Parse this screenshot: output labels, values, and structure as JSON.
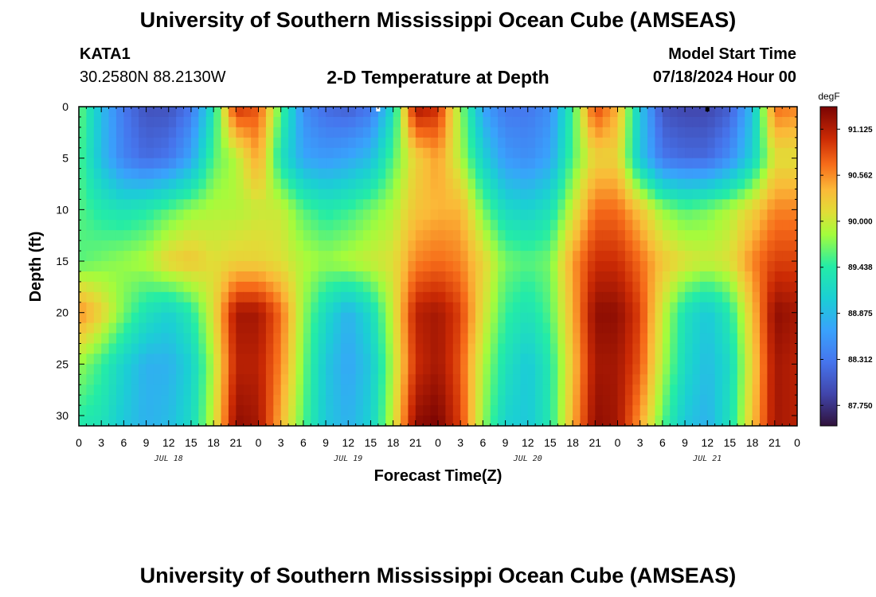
{
  "header": {
    "title": "University of Southern Mississippi Ocean Cube (AMSEAS)",
    "station": "KATA1",
    "coordinates": "30.2580N  88.2130W",
    "subtitle": "2-D Temperature at Depth",
    "model_start_label": "Model Start Time",
    "model_start_value": "07/18/2024 Hour 00"
  },
  "footer": {
    "title": "University of Southern Mississippi Ocean Cube (AMSEAS)"
  },
  "chart_data": {
    "type": "heatmap",
    "title": "2-D Temperature at Depth",
    "xlabel": "Forecast Time(Z)",
    "ylabel": "Depth (ft)",
    "x_range_hours": [
      0,
      96
    ],
    "x_tick_step_hours": 3,
    "x_tick_labels": [
      "0",
      "3",
      "6",
      "9",
      "12",
      "15",
      "18",
      "21",
      "0",
      "3",
      "6",
      "9",
      "12",
      "15",
      "18",
      "21",
      "0",
      "3",
      "6",
      "9",
      "12",
      "15",
      "18",
      "21",
      "0",
      "3",
      "6",
      "9",
      "12",
      "15",
      "18",
      "21",
      "0"
    ],
    "date_labels": [
      {
        "label": "JUL 18",
        "hour": 12
      },
      {
        "label": "JUL 19",
        "hour": 36
      },
      {
        "label": "JUL 20",
        "hour": 60
      },
      {
        "label": "JUL 21",
        "hour": 84
      }
    ],
    "y_range_ft": [
      0,
      31
    ],
    "y_tick_labels": [
      "0",
      "5",
      "10",
      "15",
      "20",
      "25",
      "30"
    ],
    "y_ticks": [
      0,
      5,
      10,
      15,
      20,
      25,
      30
    ],
    "colorbar": {
      "unit": "degF",
      "min": 87.5,
      "max": 91.4,
      "ticks": [
        "91.125",
        "90.562",
        "90.000",
        "89.438",
        "88.875",
        "88.312",
        "87.750"
      ],
      "tick_values": [
        91.125,
        90.562,
        90.0,
        89.438,
        88.875,
        88.312,
        87.75
      ]
    },
    "depth_ft": [
      0,
      5,
      10,
      15,
      20,
      25,
      31
    ],
    "time_hours": [
      0,
      3,
      6,
      9,
      12,
      15,
      18,
      21,
      24,
      27,
      30,
      33,
      36,
      39,
      42,
      45,
      48,
      51,
      54,
      57,
      60,
      63,
      66,
      69,
      72,
      75,
      78,
      81,
      84,
      87,
      90,
      93,
      96
    ],
    "temperature_degF": [
      [
        89.7,
        88.9,
        88.3,
        88.0,
        88.0,
        88.3,
        89.3,
        91.0,
        90.8,
        89.6,
        88.5,
        88.2,
        88.1,
        88.3,
        89.2,
        91.2,
        91.0,
        89.8,
        88.7,
        88.3,
        88.3,
        88.5,
        89.5,
        90.9,
        90.4,
        89.0,
        88.0,
        87.9,
        87.9,
        88.1,
        88.9,
        90.7,
        90.6
      ],
      [
        89.6,
        88.9,
        88.4,
        88.2,
        88.3,
        88.7,
        89.6,
        89.9,
        90.5,
        89.3,
        88.7,
        88.6,
        88.7,
        88.9,
        89.6,
        90.2,
        90.5,
        89.9,
        89.1,
        88.6,
        88.5,
        88.7,
        89.6,
        90.2,
        90.2,
        89.0,
        88.3,
        88.2,
        88.2,
        88.5,
        89.1,
        90.1,
        90.1
      ],
      [
        89.6,
        89.4,
        89.3,
        89.4,
        89.6,
        89.8,
        89.9,
        89.9,
        90.0,
        90.0,
        89.6,
        89.4,
        89.5,
        89.7,
        89.9,
        90.3,
        90.4,
        90.4,
        89.7,
        89.2,
        89.1,
        89.3,
        90.0,
        90.7,
        90.7,
        90.3,
        89.8,
        89.6,
        89.7,
        89.9,
        90.2,
        90.6,
        90.6
      ],
      [
        89.6,
        89.7,
        89.8,
        89.9,
        90.2,
        90.3,
        90.1,
        90.2,
        90.2,
        90.1,
        89.9,
        89.8,
        89.9,
        90.0,
        90.1,
        90.6,
        90.7,
        90.6,
        90.2,
        89.7,
        89.6,
        89.7,
        90.5,
        91.0,
        91.0,
        90.7,
        90.3,
        90.1,
        90.0,
        90.1,
        90.6,
        90.9,
        90.9
      ],
      [
        90.6,
        90.2,
        89.7,
        89.3,
        89.1,
        89.4,
        90.1,
        91.2,
        91.2,
        90.7,
        89.8,
        89.2,
        88.8,
        89.2,
        90.0,
        91.1,
        91.2,
        90.9,
        90.1,
        89.5,
        89.3,
        89.6,
        90.4,
        91.3,
        91.3,
        90.9,
        90.0,
        89.3,
        89.0,
        89.4,
        90.3,
        91.3,
        91.2
      ],
      [
        89.8,
        89.5,
        89.1,
        88.8,
        88.8,
        89.1,
        89.9,
        91.1,
        91.1,
        90.6,
        89.7,
        89.0,
        88.7,
        89.0,
        89.9,
        91.0,
        91.2,
        90.8,
        89.9,
        89.3,
        89.0,
        89.4,
        90.3,
        91.2,
        91.2,
        90.8,
        89.9,
        89.2,
        88.9,
        89.2,
        90.2,
        91.2,
        91.1
      ],
      [
        89.4,
        89.3,
        89.0,
        88.8,
        88.9,
        89.2,
        90.0,
        91.3,
        91.2,
        90.4,
        89.6,
        89.0,
        88.8,
        89.1,
        90.0,
        91.3,
        91.4,
        90.9,
        89.8,
        89.1,
        89.0,
        89.4,
        90.4,
        91.3,
        91.2,
        90.5,
        89.6,
        89.0,
        88.8,
        89.3,
        90.3,
        91.2,
        91.1
      ]
    ],
    "markers": [
      {
        "hour": 40,
        "depth_ft": 0,
        "color": "#ffffff"
      },
      {
        "hour": 84,
        "depth_ft": 0,
        "color": "#000000"
      }
    ]
  }
}
